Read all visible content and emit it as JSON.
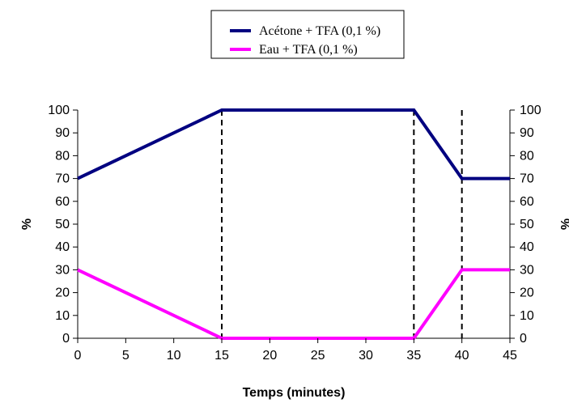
{
  "chart_data": {
    "type": "line",
    "xlabel": "Temps (minutes)",
    "ylabel": "%",
    "ylabel_right": "%",
    "xlim": [
      0,
      45
    ],
    "ylim": [
      0,
      100
    ],
    "x_ticks": [
      0,
      5,
      10,
      15,
      20,
      25,
      30,
      35,
      40,
      45
    ],
    "y_ticks": [
      0,
      10,
      20,
      30,
      40,
      50,
      60,
      70,
      80,
      90,
      100
    ],
    "legend_position": "top-center",
    "grid": false,
    "reference_lines_x": [
      15,
      35,
      40
    ],
    "series": [
      {
        "name": "Acétone + TFA (0,1 %)",
        "color": "#000080",
        "x": [
          0,
          15,
          35,
          40,
          45
        ],
        "y": [
          70,
          100,
          100,
          70,
          70
        ]
      },
      {
        "name": "Eau + TFA (0,1 %)",
        "color": "#ff00ff",
        "x": [
          0,
          15,
          35,
          40,
          45
        ],
        "y": [
          30,
          0,
          0,
          30,
          30
        ]
      }
    ]
  }
}
